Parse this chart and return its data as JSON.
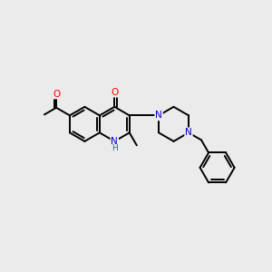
{
  "background_color": "#ebebeb",
  "line_color": "#000000",
  "bond_lw": 1.4,
  "atom_colors": {
    "O": "#ff0000",
    "N": "#0000cc",
    "NH": "#008080"
  },
  "font_size": 7.5
}
